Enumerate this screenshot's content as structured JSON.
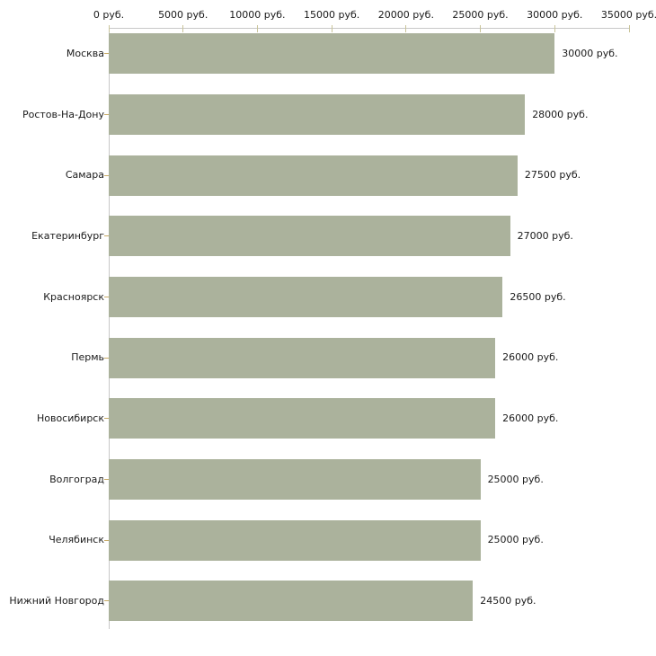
{
  "chart_data": {
    "type": "bar",
    "orientation": "horizontal",
    "title": "",
    "xlabel": "",
    "ylabel": "",
    "categories": [
      "Москва",
      "Ростов-На-Дону",
      "Самара",
      "Екатеринбург",
      "Красноярск",
      "Пермь",
      "Новосибирск",
      "Волгоград",
      "Челябинск",
      "Нижний Новгород"
    ],
    "values": [
      30000,
      28000,
      27500,
      27000,
      26500,
      26000,
      26000,
      25000,
      25000,
      24500
    ],
    "value_labels": [
      "30000 руб.",
      "28000 руб.",
      "27500 руб.",
      "27000 руб.",
      "26500 руб.",
      "26000 руб.",
      "26000 руб.",
      "25000 руб.",
      "25000 руб.",
      "24500 руб."
    ],
    "xlim": [
      0,
      35000
    ],
    "x_ticks": [
      0,
      5000,
      10000,
      15000,
      20000,
      25000,
      30000,
      35000
    ],
    "x_tick_labels": [
      "0 руб.",
      "5000 руб.",
      "10000 руб.",
      "15000 руб.",
      "20000 руб.",
      "25000 руб.",
      "30000 руб.",
      "35000 руб."
    ],
    "grid": false,
    "legend": false,
    "axis_position": "top"
  },
  "colors": {
    "bar": "#abb29c",
    "axis_line": "#c8c8c8",
    "x_tick_mark": "#c9c49a",
    "category_tick_mark": "#c8ab66",
    "text": "#1a1a1a",
    "background": "#ffffff"
  }
}
